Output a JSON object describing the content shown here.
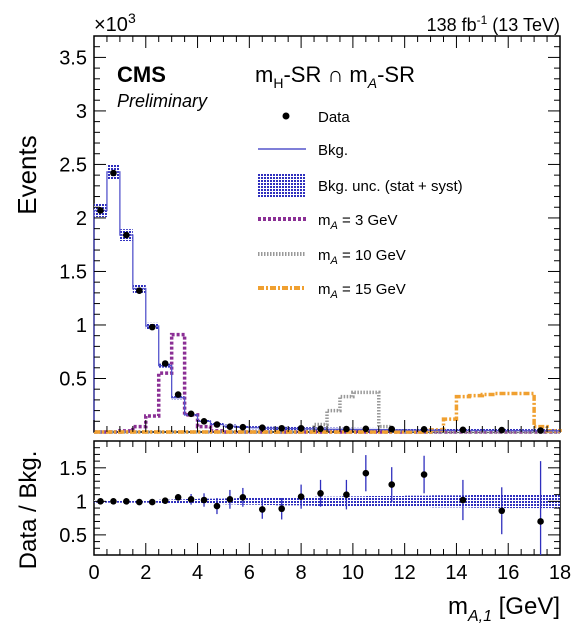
{
  "header": {
    "lumi": "138 fb",
    "lumi_sup": "-1",
    "lumi_energy": " (13 TeV)",
    "multiplier_base": "×10",
    "multiplier_exp": "3"
  },
  "labels": {
    "experiment": "CMS",
    "status": "Preliminary",
    "region_main": "m",
    "region_sub1": "H",
    "region_mid": "-SR ∩ m",
    "region_sub2": "A",
    "region_end": "-SR"
  },
  "legend": {
    "data": "Data",
    "bkg": "Bkg.",
    "unc": "Bkg. unc.  (stat + syst)",
    "sig3_m": "m",
    "sig3_sub": "A",
    "sig3_rest": " = 3 GeV",
    "sig10_m": "m",
    "sig10_sub": "A",
    "sig10_rest": " = 10 GeV",
    "sig15_m": "m",
    "sig15_sub": "A",
    "sig15_rest": " = 15 GeV"
  },
  "axes": {
    "ylabel_top": "Events",
    "ylabel_bottom": "Data / Bkg.",
    "xlabel_m": "m",
    "xlabel_sub": "A,1",
    "xlabel_unit": " [GeV]",
    "top_yticks": [
      "0.5",
      "1",
      "1.5",
      "2",
      "2.5",
      "3",
      "3.5"
    ],
    "bottom_yticks": [
      "0.5",
      "1",
      "1.5"
    ],
    "xticks": [
      "0",
      "2",
      "4",
      "6",
      "8",
      "10",
      "12",
      "14",
      "16",
      "18"
    ]
  },
  "colors": {
    "bkg": "#5555cc",
    "unc": "#2f2fbe",
    "sig3": "#8b2f95",
    "sig10": "#999999",
    "sig15": "#f0a030",
    "data": "#000000"
  },
  "chart_data": {
    "type": "bar",
    "xlim": [
      0,
      18
    ],
    "ylim_top": [
      0,
      3.7
    ],
    "ylim_bottom": [
      0.2,
      1.9
    ],
    "y_multiplier": 1000,
    "bin_edges": [
      0,
      0.5,
      1,
      1.5,
      2,
      2.5,
      3,
      3.5,
      4,
      4.5,
      5,
      5.5,
      6,
      6.5,
      7,
      7.5,
      8,
      8.5,
      9,
      9.5,
      10,
      10.5,
      11,
      11.5,
      12,
      12.5,
      13,
      13.5,
      14,
      14.5,
      15,
      15.5,
      16,
      16.5,
      17,
      17.5,
      18
    ],
    "bkg": [
      2.07,
      2.43,
      1.84,
      1.34,
      0.99,
      0.62,
      0.32,
      0.16,
      0.1,
      0.07,
      0.055,
      0.045,
      0.04,
      0.035,
      0.033,
      0.032,
      0.03,
      0.028,
      0.026,
      0.025,
      0.024,
      0.023,
      0.022,
      0.02,
      0.019,
      0.018,
      0.017,
      0.016,
      0.015,
      0.014,
      0.014,
      0.013,
      0.013,
      0.012,
      0.012,
      0.011
    ],
    "data_points": [
      {
        "x": 0.25,
        "y": 2.07
      },
      {
        "x": 0.75,
        "y": 2.42
      },
      {
        "x": 1.25,
        "y": 1.84
      },
      {
        "x": 1.75,
        "y": 1.32
      },
      {
        "x": 2.25,
        "y": 0.98
      },
      {
        "x": 2.75,
        "y": 0.64
      },
      {
        "x": 3.25,
        "y": 0.35
      },
      {
        "x": 3.75,
        "y": 0.17
      },
      {
        "x": 4.25,
        "y": 0.1
      },
      {
        "x": 4.75,
        "y": 0.07
      },
      {
        "x": 5.25,
        "y": 0.05
      },
      {
        "x": 5.75,
        "y": 0.045
      },
      {
        "x": 6.5,
        "y": 0.04
      },
      {
        "x": 7.25,
        "y": 0.035
      },
      {
        "x": 8.0,
        "y": 0.035
      },
      {
        "x": 8.75,
        "y": 0.03
      },
      {
        "x": 9.75,
        "y": 0.028
      },
      {
        "x": 10.5,
        "y": 0.03
      },
      {
        "x": 11.5,
        "y": 0.027
      },
      {
        "x": 12.75,
        "y": 0.025
      },
      {
        "x": 14.25,
        "y": 0.02
      },
      {
        "x": 15.75,
        "y": 0.018
      },
      {
        "x": 17.25,
        "y": 0.014
      }
    ],
    "sig3": [
      0,
      0,
      0.01,
      0.05,
      0.15,
      0.55,
      0.91,
      0.16,
      0.05,
      0.01,
      0,
      0,
      0,
      0,
      0,
      0,
      0,
      0,
      0,
      0,
      0,
      0,
      0,
      0,
      0,
      0,
      0,
      0,
      0,
      0,
      0,
      0,
      0,
      0,
      0,
      0
    ],
    "sig10": [
      0,
      0,
      0,
      0,
      0,
      0,
      0,
      0,
      0,
      0,
      0,
      0,
      0,
      0,
      0,
      0,
      0.01,
      0.07,
      0.2,
      0.33,
      0.37,
      0.37,
      0.05,
      0.01,
      0,
      0,
      0,
      0,
      0,
      0,
      0,
      0,
      0,
      0,
      0,
      0
    ],
    "sig15": [
      0,
      0,
      0,
      0,
      0,
      0,
      0,
      0,
      0,
      0,
      0,
      0,
      0,
      0,
      0,
      0,
      0,
      0,
      0,
      0,
      0,
      0,
      0,
      0,
      0,
      0,
      0.02,
      0.12,
      0.33,
      0.34,
      0.35,
      0.36,
      0.36,
      0.36,
      0.05,
      0.01
    ],
    "ratio": [
      {
        "x": 0.25,
        "y": 1.0,
        "err": 0.02
      },
      {
        "x": 0.75,
        "y": 1.0,
        "err": 0.02
      },
      {
        "x": 1.25,
        "y": 1.0,
        "err": 0.02
      },
      {
        "x": 1.75,
        "y": 0.99,
        "err": 0.02
      },
      {
        "x": 2.25,
        "y": 0.99,
        "err": 0.03
      },
      {
        "x": 2.75,
        "y": 1.01,
        "err": 0.04
      },
      {
        "x": 3.25,
        "y": 1.06,
        "err": 0.05
      },
      {
        "x": 3.75,
        "y": 1.03,
        "err": 0.08
      },
      {
        "x": 4.25,
        "y": 1.02,
        "err": 0.1
      },
      {
        "x": 4.75,
        "y": 0.93,
        "err": 0.12
      },
      {
        "x": 5.25,
        "y": 1.03,
        "err": 0.14
      },
      {
        "x": 5.75,
        "y": 1.06,
        "err": 0.14
      },
      {
        "x": 6.5,
        "y": 0.88,
        "err": 0.14
      },
      {
        "x": 7.25,
        "y": 0.89,
        "err": 0.16
      },
      {
        "x": 8.0,
        "y": 1.07,
        "err": 0.18
      },
      {
        "x": 8.75,
        "y": 1.12,
        "err": 0.2
      },
      {
        "x": 9.75,
        "y": 1.1,
        "err": 0.22
      },
      {
        "x": 10.5,
        "y": 1.42,
        "err": 0.27
      },
      {
        "x": 11.5,
        "y": 1.25,
        "err": 0.26
      },
      {
        "x": 12.75,
        "y": 1.4,
        "err": 0.28
      },
      {
        "x": 14.25,
        "y": 1.02,
        "err": 0.3
      },
      {
        "x": 15.75,
        "y": 0.86,
        "err": 0.35
      },
      {
        "x": 17.25,
        "y": 0.7,
        "err": 0.9
      }
    ],
    "ratio_unc_half_width": [
      0.02,
      0.02,
      0.02,
      0.02,
      0.02,
      0.025,
      0.03,
      0.035,
      0.04,
      0.04,
      0.045,
      0.05,
      0.05,
      0.055,
      0.06,
      0.06,
      0.065,
      0.07,
      0.07,
      0.075,
      0.075,
      0.08,
      0.08,
      0.08,
      0.085,
      0.085,
      0.09,
      0.09,
      0.09,
      0.095,
      0.095,
      0.1,
      0.1,
      0.1,
      0.1,
      0.1
    ]
  }
}
